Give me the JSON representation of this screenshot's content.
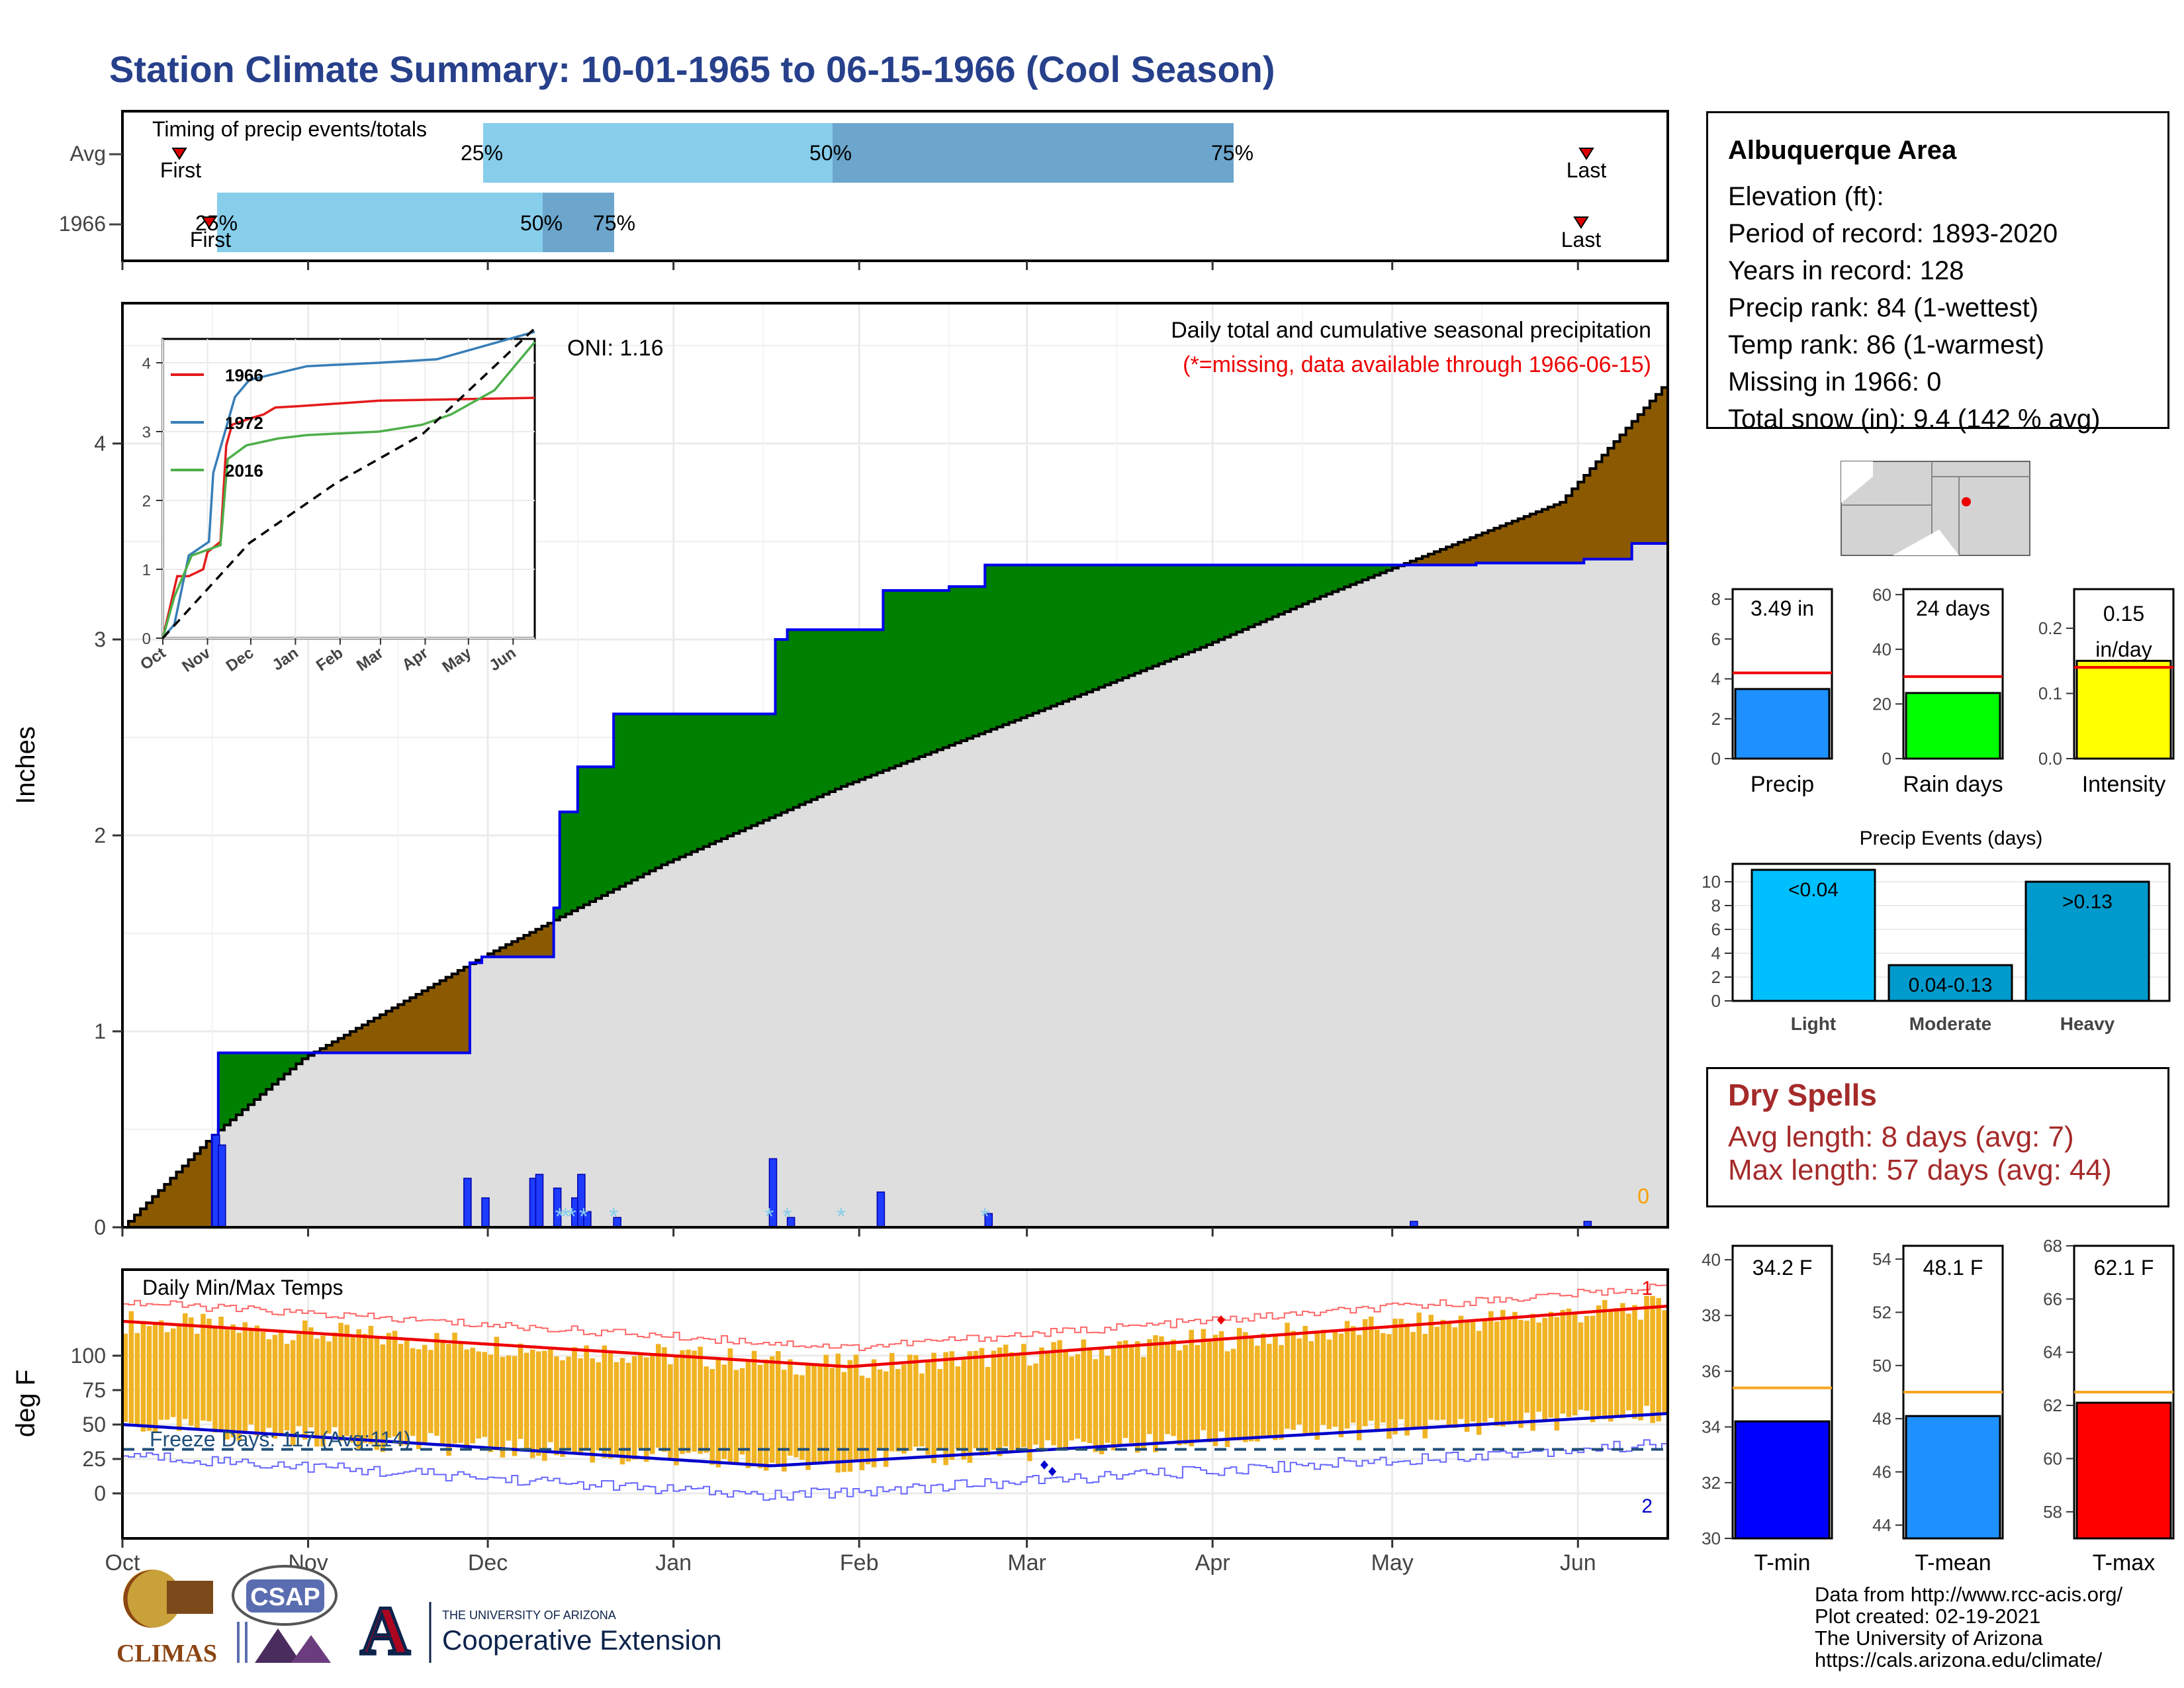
{
  "title": "Station Climate Summary: 10-01-1965 to 06-15-1966 (Cool Season)",
  "timing": {
    "label": "Timing of precip events/totals",
    "rows": [
      "Avg",
      "1966"
    ],
    "first_label": "First",
    "last_label": "Last",
    "avg_pct_labels": [
      "25%",
      "50%",
      "75%"
    ],
    "y1966_pct_labels": [
      "25%",
      "50%",
      "75%"
    ]
  },
  "main": {
    "ylabel": "Inches",
    "oni": "ONI: 1.16",
    "subtitle1": "Daily total and cumulative seasonal precipitation",
    "subtitle2": "(*=missing, data available through 1966-06-15)",
    "zero_label": "0",
    "month_labels": [
      "Oct",
      "Nov",
      "Dec",
      "Jan",
      "Feb",
      "Mar",
      "Apr",
      "May",
      "Jun"
    ]
  },
  "inset": {
    "legend": [
      "1966",
      "1972",
      "2016"
    ],
    "colors": [
      "#e41a1c",
      "#377eb8",
      "#4daf4a"
    ],
    "month_labels": [
      "Oct",
      "Nov",
      "Dec",
      "Jan",
      "Feb",
      "Mar",
      "Apr",
      "May",
      "Jun"
    ]
  },
  "temps": {
    "label": "Daily Min/Max Temps",
    "ylabel": "deg F",
    "freeze": "Freeze Days: 117 (Avg:114)",
    "count_top": "1",
    "count_bottom": "2"
  },
  "info": {
    "station": "Albuquerque Area",
    "lines": [
      "Elevation (ft):",
      "Period of record: 1893-2020",
      "Years in record: 128",
      "Precip rank: 84 (1-wettest)",
      "Temp rank: 86 (1-warmest)",
      "Missing in 1966: 0",
      "Total snow (in): 9.4 (142 % avg)"
    ]
  },
  "minibars": {
    "precip": {
      "label": "Precip",
      "value_text": "3.49 in"
    },
    "raindays": {
      "label": "Rain days",
      "value_text": "24 days"
    },
    "intensity": {
      "label": "Intensity",
      "value_text1": "0.15",
      "value_text2": "in/day"
    }
  },
  "events": {
    "title": "Precip Events (days)",
    "bars": [
      {
        "label": "Light",
        "text": "<0.04"
      },
      {
        "label": "Moderate",
        "text": "0.04-0.13"
      },
      {
        "label": "Heavy",
        "text": ">0.13"
      }
    ]
  },
  "dry": {
    "title": "Dry Spells",
    "avg": "Avg length: 8 days (avg: 7)",
    "max": "Max length: 57 days (avg: 44)"
  },
  "tbars": {
    "tmin": {
      "label": "T-min",
      "value_text": "34.2 F"
    },
    "tmean": {
      "label": "T-mean",
      "value_text": "48.1 F"
    },
    "tmax": {
      "label": "T-max",
      "value_text": "62.1 F"
    }
  },
  "logos": {
    "climas": "CLIMAS",
    "csap": "CSAP",
    "ua_small": "THE UNIVERSITY OF ARIZONA",
    "ua_big": "Cooperative Extension",
    "a_letter": "A"
  },
  "footer": [
    "Data from http://www.rcc-acis.org/",
    "Plot created: 02-19-2021",
    "The University of Arizona",
    "https://cals.arizona.edu/climate/"
  ],
  "chart_data": [
    {
      "type": "area",
      "name": "cumulative",
      "ylim": [
        0,
        4.75
      ],
      "x_unit": "day of season (Oct 1 = 0)",
      "cumulative_1966": [
        [
          0,
          0
        ],
        [
          14,
          0
        ],
        [
          15,
          0.47
        ],
        [
          16,
          0.89
        ],
        [
          57,
          0.89
        ],
        [
          58,
          1.35
        ],
        [
          60,
          1.38
        ],
        [
          71,
          1.38
        ],
        [
          72,
          1.63
        ],
        [
          73,
          2.12
        ],
        [
          75,
          2.12
        ],
        [
          76,
          2.35
        ],
        [
          81,
          2.35
        ],
        [
          82,
          2.62
        ],
        [
          108,
          2.62
        ],
        [
          109,
          3.0
        ],
        [
          111,
          3.05
        ],
        [
          126,
          3.05
        ],
        [
          127,
          3.25
        ],
        [
          138,
          3.27
        ],
        [
          144,
          3.38
        ],
        [
          226,
          3.39
        ],
        [
          244,
          3.41
        ],
        [
          252,
          3.49
        ],
        [
          258,
          3.49
        ]
      ],
      "cumulative_avg": [
        [
          0,
          0
        ],
        [
          15,
          0.47
        ],
        [
          30,
          0.86
        ],
        [
          60,
          1.38
        ],
        [
          90,
          1.85
        ],
        [
          120,
          2.25
        ],
        [
          150,
          2.6
        ],
        [
          180,
          2.96
        ],
        [
          200,
          3.22
        ],
        [
          215,
          3.4
        ],
        [
          240,
          3.7
        ],
        [
          258,
          4.32
        ]
      ],
      "daily": [
        [
          15,
          0.47
        ],
        [
          16,
          0.42
        ],
        [
          57,
          0.25
        ],
        [
          60,
          0.15
        ],
        [
          68,
          0.25
        ],
        [
          69,
          0.27
        ],
        [
          72,
          0.2
        ],
        [
          75,
          0.15
        ],
        [
          76,
          0.27
        ],
        [
          77,
          0.08
        ],
        [
          82,
          0.05
        ],
        [
          108,
          0.35
        ],
        [
          111,
          0.05
        ],
        [
          126,
          0.18
        ],
        [
          144,
          0.07
        ],
        [
          215,
          0.03
        ],
        [
          244,
          0.03
        ]
      ],
      "missing_days": [
        73,
        74,
        75,
        77,
        82,
        108,
        111,
        120,
        144
      ]
    },
    {
      "type": "line",
      "name": "inset cumulative",
      "ylim": [
        0,
        4.5
      ],
      "series": [
        {
          "name": "1966",
          "points": [
            [
              0,
              0
            ],
            [
              10,
              0.9
            ],
            [
              18,
              0.9
            ],
            [
              28,
              1.0
            ],
            [
              31,
              1.25
            ],
            [
              40,
              1.4
            ],
            [
              44,
              2.8
            ],
            [
              48,
              3.1
            ],
            [
              62,
              3.2
            ],
            [
              70,
              3.25
            ],
            [
              78,
              3.35
            ],
            [
              95,
              3.37
            ],
            [
              150,
              3.45
            ],
            [
              258,
              3.49
            ]
          ]
        },
        {
          "name": "1972",
          "points": [
            [
              0,
              0
            ],
            [
              8,
              0.2
            ],
            [
              18,
              1.2
            ],
            [
              32,
              1.4
            ],
            [
              35,
              2.4
            ],
            [
              50,
              3.5
            ],
            [
              60,
              3.75
            ],
            [
              80,
              3.85
            ],
            [
              100,
              3.95
            ],
            [
              150,
              4.0
            ],
            [
              190,
              4.05
            ],
            [
              258,
              4.45
            ]
          ]
        },
        {
          "name": "2016",
          "points": [
            [
              0,
              0
            ],
            [
              8,
              0.6
            ],
            [
              20,
              1.2
            ],
            [
              40,
              1.35
            ],
            [
              45,
              2.6
            ],
            [
              58,
              2.8
            ],
            [
              80,
              2.9
            ],
            [
              100,
              2.95
            ],
            [
              150,
              3.0
            ],
            [
              180,
              3.1
            ],
            [
              200,
              3.25
            ],
            [
              230,
              3.6
            ],
            [
              258,
              4.3
            ]
          ]
        },
        {
          "name": "avg",
          "points": [
            [
              0,
              0
            ],
            [
              60,
              1.38
            ],
            [
              120,
              2.25
            ],
            [
              180,
              2.96
            ],
            [
              258,
              4.5
            ]
          ]
        }
      ]
    },
    {
      "type": "line",
      "name": "temps",
      "ylim": [
        -20,
        105
      ],
      "freeze_line": 32,
      "avg_max_start": 78,
      "avg_max_end": 89,
      "avg_min_start": 50,
      "avg_min_end": 58
    },
    {
      "type": "bar",
      "name": "precip minibars",
      "categories": [
        "Precip",
        "Rain days",
        "Intensity"
      ],
      "values": [
        3.49,
        24,
        0.15
      ],
      "averages": [
        4.3,
        30,
        0.14
      ],
      "ylims": [
        [
          0,
          8.5
        ],
        [
          0,
          62
        ],
        [
          0,
          0.26
        ]
      ]
    },
    {
      "type": "bar",
      "name": "Precip Events (days)",
      "categories": [
        "Light",
        "Moderate",
        "Heavy"
      ],
      "values": [
        11,
        3,
        10
      ],
      "ylim": [
        0,
        11.5
      ]
    },
    {
      "type": "bar",
      "name": "temperature bars",
      "categories": [
        "T-min",
        "T-mean",
        "T-max"
      ],
      "values": [
        34.2,
        48.1,
        62.1
      ],
      "averages": [
        35.4,
        49.0,
        62.5
      ],
      "ylims": [
        [
          30,
          40.5
        ],
        [
          43.5,
          54.5
        ],
        [
          57,
          68
        ]
      ]
    }
  ]
}
